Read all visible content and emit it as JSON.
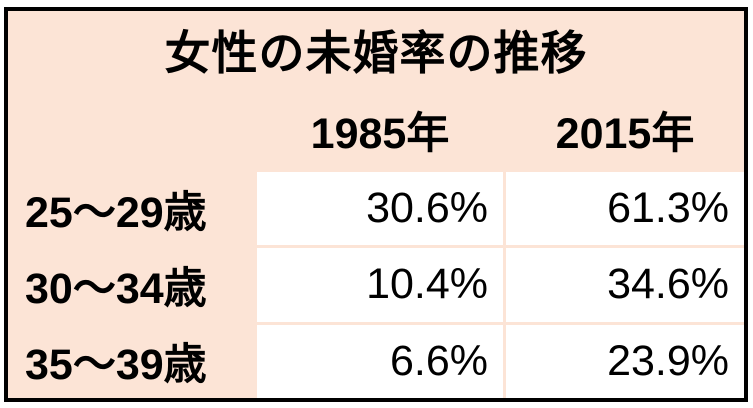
{
  "table": {
    "title": "女性の未婚率の推移",
    "column_headers": [
      "1985年",
      "2015年"
    ],
    "rows": [
      {
        "label": "25〜29歳",
        "values": [
          "30.6%",
          "61.3%"
        ]
      },
      {
        "label": "30〜34歳",
        "values": [
          "10.4%",
          "34.6%"
        ]
      },
      {
        "label": "35〜39歳",
        "values": [
          "6.6%",
          "23.9%"
        ]
      }
    ]
  },
  "theme": {
    "bg": "#fce4d6",
    "cell": "#ffffff",
    "border": "#000000",
    "text": "#000000"
  },
  "chart_data": {
    "type": "table",
    "title": "女性の未婚率の推移",
    "categories": [
      "25〜29歳",
      "30〜34歳",
      "35〜39歳"
    ],
    "series": [
      {
        "name": "1985年",
        "values": [
          30.6,
          10.4,
          6.6
        ]
      },
      {
        "name": "2015年",
        "values": [
          61.3,
          34.6,
          23.9
        ]
      }
    ],
    "unit": "%"
  }
}
